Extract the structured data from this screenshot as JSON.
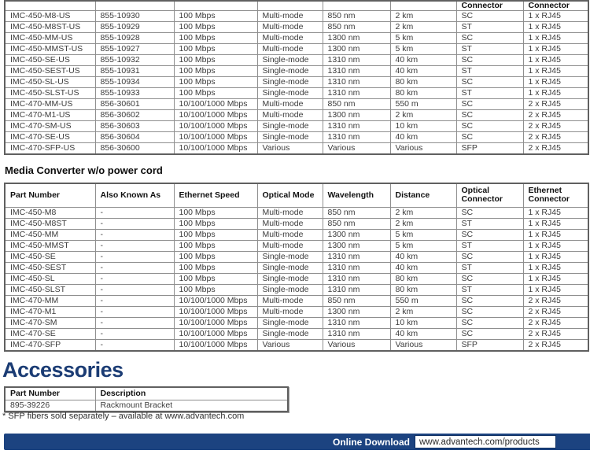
{
  "page": {
    "wo_power_heading": "Media Converter w/o power cord",
    "accessories_heading": "Accessories",
    "footnote": "* SFP fibers sold separately – available at www.advantech.com",
    "footer": {
      "label": "Online Download",
      "url": "www.advantech.com/products"
    }
  },
  "colors": {
    "footer_bar_navy": "#1c4380",
    "heading_navy": "#1b3c74",
    "table_border_gray": "#8f8f8f"
  },
  "tables": {
    "us_models": {
      "partial_header": [
        "",
        "",
        "",
        "",
        "",
        "",
        "Connector",
        "Connector"
      ],
      "rows": [
        [
          "IMC-450-M8-US",
          "855-10930",
          "100 Mbps",
          "Multi-mode",
          "850 nm",
          "2 km",
          "SC",
          "1 x RJ45"
        ],
        [
          "IMC-450-M8ST-US",
          "855-10929",
          "100 Mbps",
          "Multi-mode",
          "850 nm",
          "2 km",
          "ST",
          "1 x RJ45"
        ],
        [
          "IMC-450-MM-US",
          "855-10928",
          "100 Mbps",
          "Multi-mode",
          "1300 nm",
          "5 km",
          "SC",
          "1 x RJ45"
        ],
        [
          "IMC-450-MMST-US",
          "855-10927",
          "100 Mbps",
          "Multi-mode",
          "1300 nm",
          "5 km",
          "ST",
          "1 x RJ45"
        ],
        [
          "IMC-450-SE-US",
          "855-10932",
          "100 Mbps",
          "Single-mode",
          "1310 nm",
          "40 km",
          "SC",
          "1 x RJ45"
        ],
        [
          "IMC-450-SEST-US",
          "855-10931",
          "100 Mbps",
          "Single-mode",
          "1310 nm",
          "40 km",
          "ST",
          "1 x RJ45"
        ],
        [
          "IMC-450-SL-US",
          "855-10934",
          "100 Mbps",
          "Single-mode",
          "1310 nm",
          "80 km",
          "SC",
          "1 x RJ45"
        ],
        [
          "IMC-450-SLST-US",
          "855-10933",
          "100 Mbps",
          "Single-mode",
          "1310 nm",
          "80 km",
          "ST",
          "1 x RJ45"
        ],
        [
          "IMC-470-MM-US",
          "856-30601",
          "10/100/1000 Mbps",
          "Multi-mode",
          "850 nm",
          "550 m",
          "SC",
          "2 x RJ45"
        ],
        [
          "IMC-470-M1-US",
          "856-30602",
          "10/100/1000 Mbps",
          "Multi-mode",
          "1300 nm",
          "2 km",
          "SC",
          "2 x RJ45"
        ],
        [
          "IMC-470-SM-US",
          "856-30603",
          "10/100/1000 Mbps",
          "Single-mode",
          "1310 nm",
          "10 km",
          "SC",
          "2 x RJ45"
        ],
        [
          "IMC-470-SE-US",
          "856-30604",
          "10/100/1000 Mbps",
          "Single-mode",
          "1310 nm",
          "40 km",
          "SC",
          "2 x RJ45"
        ],
        [
          "IMC-470-SFP-US",
          "856-30600",
          "10/100/1000 Mbps",
          "Various",
          "Various",
          "Various",
          "SFP",
          "2 x RJ45"
        ]
      ]
    },
    "wo_power": {
      "headers": [
        "Part Number",
        "Also Known As",
        "Ethernet Speed",
        "Optical Mode",
        "Wavelength",
        "Distance",
        "Optical Connector",
        "Ethernet Connector"
      ],
      "rows": [
        [
          "IMC-450-M8",
          "-",
          "100 Mbps",
          "Multi-mode",
          "850 nm",
          "2 km",
          "SC",
          "1 x RJ45"
        ],
        [
          "IMC-450-M8ST",
          "-",
          "100 Mbps",
          "Multi-mode",
          "850 nm",
          "2 km",
          "ST",
          "1 x RJ45"
        ],
        [
          "IMC-450-MM",
          "-",
          "100 Mbps",
          "Multi-mode",
          "1300 nm",
          "5 km",
          "SC",
          "1 x RJ45"
        ],
        [
          "IMC-450-MMST",
          "-",
          "100 Mbps",
          "Multi-mode",
          "1300 nm",
          "5 km",
          "ST",
          "1 x RJ45"
        ],
        [
          "IMC-450-SE",
          "-",
          "100 Mbps",
          "Single-mode",
          "1310 nm",
          "40 km",
          "SC",
          "1 x RJ45"
        ],
        [
          "IMC-450-SEST",
          "-",
          "100 Mbps",
          "Single-mode",
          "1310 nm",
          "40 km",
          "ST",
          "1 x RJ45"
        ],
        [
          "IMC-450-SL",
          "-",
          "100 Mbps",
          "Single-mode",
          "1310 nm",
          "80 km",
          "SC",
          "1 x RJ45"
        ],
        [
          "IMC-450-SLST",
          "-",
          "100 Mbps",
          "Single-mode",
          "1310 nm",
          "80 km",
          "ST",
          "1 x RJ45"
        ],
        [
          "IMC-470-MM",
          "-",
          "10/100/1000 Mbps",
          "Multi-mode",
          "850 nm",
          "550 m",
          "SC",
          "2 x RJ45"
        ],
        [
          "IMC-470-M1",
          "-",
          "10/100/1000 Mbps",
          "Multi-mode",
          "1300 nm",
          "2 km",
          "SC",
          "2 x RJ45"
        ],
        [
          "IMC-470-SM",
          "-",
          "10/100/1000 Mbps",
          "Single-mode",
          "1310 nm",
          "10 km",
          "SC",
          "2 x RJ45"
        ],
        [
          "IMC-470-SE",
          "-",
          "10/100/1000 Mbps",
          "Single-mode",
          "1310 nm",
          "40 km",
          "SC",
          "2 x RJ45"
        ],
        [
          "IMC-470-SFP",
          "-",
          "10/100/1000 Mbps",
          "Various",
          "Various",
          "Various",
          "SFP",
          "2 x RJ45"
        ]
      ]
    },
    "accessories": {
      "headers": [
        "Part Number",
        "Description"
      ],
      "rows": [
        [
          "895-39226",
          "Rackmount Bracket"
        ]
      ]
    }
  }
}
